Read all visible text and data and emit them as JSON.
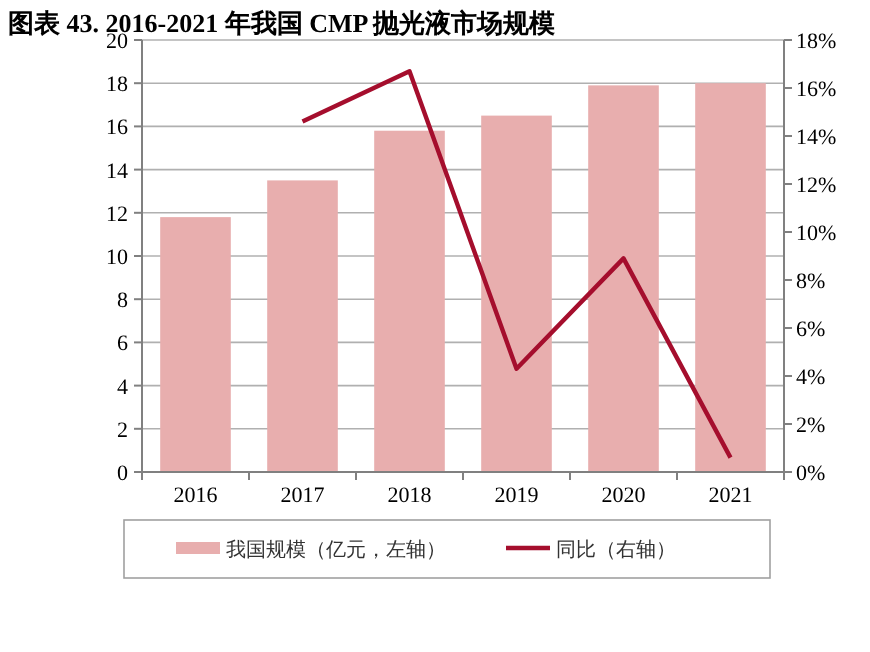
{
  "chart_data": {
    "type": "bar",
    "title": "图表 43. 2016-2021 年我国 CMP 抛光液市场规模",
    "categories": [
      "2016",
      "2017",
      "2018",
      "2019",
      "2020",
      "2021"
    ],
    "series": [
      {
        "name": "我国规模（亿元，左轴）",
        "color": "#e8aeae",
        "values": [
          11.8,
          13.5,
          15.8,
          16.5,
          17.9,
          18.0
        ]
      },
      {
        "name": "同比（右轴）",
        "color": "#a50e2d",
        "type": "line",
        "axis": "y2",
        "values": [
          null,
          14.6,
          16.7,
          4.3,
          8.9,
          0.6
        ]
      }
    ],
    "ylim": [
      0,
      20
    ],
    "yticks": [
      0,
      2,
      4,
      6,
      8,
      10,
      12,
      14,
      16,
      18,
      20
    ],
    "y2lim": [
      0,
      18
    ],
    "y2ticks": [
      {
        "value": 0,
        "label": "0%"
      },
      {
        "value": 2,
        "label": "2%"
      },
      {
        "value": 4,
        "label": "4%"
      },
      {
        "value": 6,
        "label": "6%"
      },
      {
        "value": 8,
        "label": "8%"
      },
      {
        "value": 10,
        "label": "10%"
      },
      {
        "value": 12,
        "label": "12%"
      },
      {
        "value": 14,
        "label": "14%"
      },
      {
        "value": 16,
        "label": "16%"
      },
      {
        "value": 18,
        "label": "18%"
      }
    ],
    "grid": "y",
    "legend": "bottom"
  }
}
